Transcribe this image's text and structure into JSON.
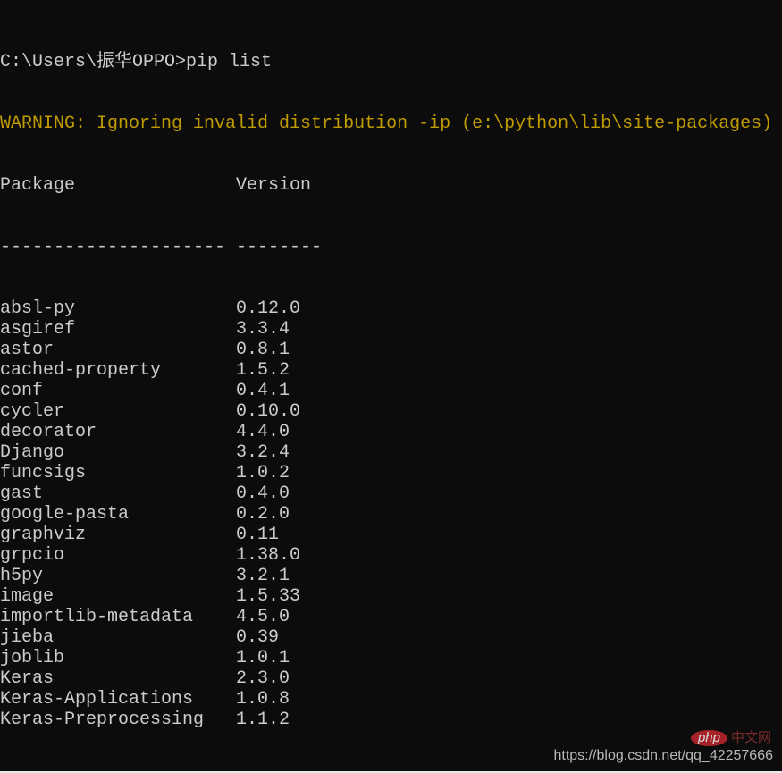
{
  "terminal": {
    "prompt": "C:\\Users\\振华OPPO>pip list",
    "warning": "WARNING: Ignoring invalid distribution -ip (e:\\python\\lib\\site-packages)",
    "header": {
      "package": "Package",
      "version": "Version"
    },
    "separator": {
      "package": "---------------------",
      "version": "--------"
    },
    "packages": [
      {
        "name": "absl-py",
        "version": "0.12.0"
      },
      {
        "name": "asgiref",
        "version": "3.3.4"
      },
      {
        "name": "astor",
        "version": "0.8.1"
      },
      {
        "name": "cached-property",
        "version": "1.5.2"
      },
      {
        "name": "conf",
        "version": "0.4.1"
      },
      {
        "name": "cycler",
        "version": "0.10.0"
      },
      {
        "name": "decorator",
        "version": "4.4.0"
      },
      {
        "name": "Django",
        "version": "3.2.4"
      },
      {
        "name": "funcsigs",
        "version": "1.0.2"
      },
      {
        "name": "gast",
        "version": "0.4.0"
      },
      {
        "name": "google-pasta",
        "version": "0.2.0"
      },
      {
        "name": "graphviz",
        "version": "0.11"
      },
      {
        "name": "grpcio",
        "version": "1.38.0"
      },
      {
        "name": "h5py",
        "version": "3.2.1"
      },
      {
        "name": "image",
        "version": "1.5.33"
      },
      {
        "name": "importlib-metadata",
        "version": "4.5.0"
      },
      {
        "name": "jieba",
        "version": "0.39"
      },
      {
        "name": "joblib",
        "version": "1.0.1"
      },
      {
        "name": "Keras",
        "version": "2.3.0"
      },
      {
        "name": "Keras-Applications",
        "version": "1.0.8"
      },
      {
        "name": "Keras-Preprocessing",
        "version": "1.1.2"
      }
    ]
  },
  "watermark": {
    "logo": "php",
    "logo_cn": "中文网",
    "url": "https://blog.csdn.net/qq_42257666"
  },
  "colors": {
    "background": "#0c0c0c",
    "text": "#cccccc",
    "warning": "#c19c00"
  }
}
